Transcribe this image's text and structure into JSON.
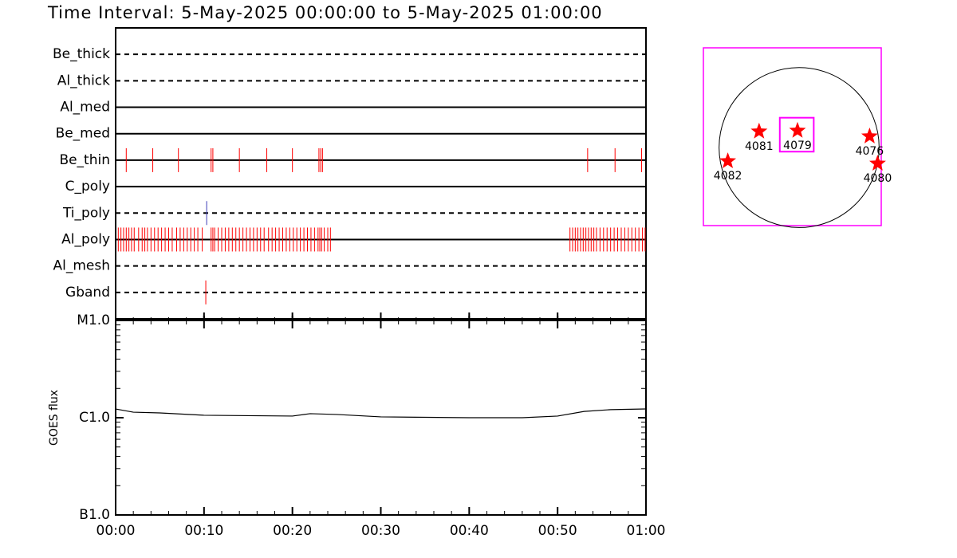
{
  "chart_data": [
    {
      "type": "timeline",
      "title": "Time Interval:  5-May-2025 00:00:00 to  5-May-2025 01:00:00",
      "xlim": [
        0,
        60
      ],
      "xticks": [
        {
          "value": 0,
          "label": "00:00"
        },
        {
          "value": 10,
          "label": "00:10"
        },
        {
          "value": 20,
          "label": "00:20"
        },
        {
          "value": 30,
          "label": "00:30"
        },
        {
          "value": 40,
          "label": "00:40"
        },
        {
          "value": 50,
          "label": "00:50"
        },
        {
          "value": 60,
          "label": "01:00"
        }
      ],
      "series": [
        {
          "name": "Be_thick",
          "dashed": true,
          "color": "#ff0000",
          "x": []
        },
        {
          "name": "Al_thick",
          "dashed": true,
          "color": "#ff0000",
          "x": []
        },
        {
          "name": "Al_med",
          "dashed": false,
          "color": "#ff0000",
          "x": []
        },
        {
          "name": "Be_med",
          "dashed": false,
          "color": "#ff0000",
          "x": []
        },
        {
          "name": "Be_thin",
          "dashed": false,
          "color": "#ff0000",
          "x": [
            1.2,
            4.2,
            7.1,
            10.8,
            11.0,
            14.0,
            17.1,
            20.0,
            23.0,
            23.2,
            23.4,
            53.4,
            56.5,
            59.5
          ]
        },
        {
          "name": "C_poly",
          "dashed": false,
          "color": "#ff0000",
          "x": []
        },
        {
          "name": "Ti_poly",
          "dashed": true,
          "color": "#3a3ab8",
          "x": [
            10.3
          ]
        },
        {
          "name": "Al_poly",
          "dashed": false,
          "color": "#ff0000",
          "x": [
            0.3,
            0.6,
            0.9,
            1.2,
            1.5,
            1.8,
            2.1,
            2.6,
            3.0,
            3.3,
            3.6,
            4.0,
            4.4,
            4.8,
            5.2,
            5.6,
            6.0,
            6.4,
            6.9,
            7.3,
            7.7,
            8.1,
            8.5,
            8.9,
            9.3,
            9.8,
            10.8,
            11.0,
            11.2,
            11.6,
            12.0,
            12.4,
            12.8,
            13.2,
            13.6,
            14.0,
            14.4,
            14.8,
            15.2,
            15.6,
            16.0,
            16.4,
            16.8,
            17.3,
            17.7,
            18.1,
            18.5,
            18.9,
            19.3,
            19.7,
            20.1,
            20.5,
            20.9,
            21.3,
            21.7,
            22.1,
            22.5,
            22.9,
            23.1,
            23.3,
            23.6,
            24.0,
            24.3,
            51.4,
            51.7,
            52.0,
            52.3,
            52.6,
            52.9,
            53.2,
            53.5,
            53.8,
            54.1,
            54.4,
            54.8,
            55.2,
            55.6,
            56.0,
            56.4,
            56.8,
            57.2,
            57.6,
            58.0,
            58.4,
            58.8,
            59.2,
            59.6,
            59.9
          ]
        },
        {
          "name": "Al_mesh",
          "dashed": true,
          "color": "#ff0000",
          "x": []
        },
        {
          "name": "Gband",
          "dashed": true,
          "color": "#ff0000",
          "x": [
            10.2
          ]
        }
      ]
    },
    {
      "type": "line",
      "ylabel": "GOES flux",
      "log": true,
      "xlim": [
        0,
        60
      ],
      "ylim": [
        1e-07,
        1e-05
      ],
      "yticks": [
        {
          "value": 1e-05,
          "label": "M1.0"
        },
        {
          "value": 1e-06,
          "label": "C1.0"
        },
        {
          "value": 1e-07,
          "label": "B1.0"
        }
      ],
      "x": [
        0,
        2,
        5,
        10,
        20,
        22,
        25,
        30,
        40,
        46,
        50,
        53,
        56,
        60
      ],
      "values": [
        1.23e-06,
        1.14e-06,
        1.12e-06,
        1.06e-06,
        1.04e-06,
        1.1e-06,
        1.08e-06,
        1.02e-06,
        1e-06,
        1e-06,
        1.04e-06,
        1.16e-06,
        1.21e-06,
        1.23e-06
      ],
      "color": "#000000"
    },
    {
      "type": "map",
      "xlim": [
        -1100,
        1100
      ],
      "ylim": [
        -1100,
        1100
      ],
      "frame_color": "#ff00ff",
      "disk": {
        "x": 84,
        "y": -134,
        "r": 990
      },
      "fov": {
        "x": 55,
        "y": 25,
        "size": 420
      },
      "color": "#ff0000",
      "points": [
        {
          "label": "4082",
          "x": -798,
          "y": -302
        },
        {
          "label": "4081",
          "x": -411,
          "y": 65
        },
        {
          "label": "4079",
          "x": 64,
          "y": 75
        },
        {
          "label": "4076",
          "x": 956,
          "y": 5
        },
        {
          "label": "4080",
          "x": 1055,
          "y": -332
        }
      ]
    }
  ]
}
